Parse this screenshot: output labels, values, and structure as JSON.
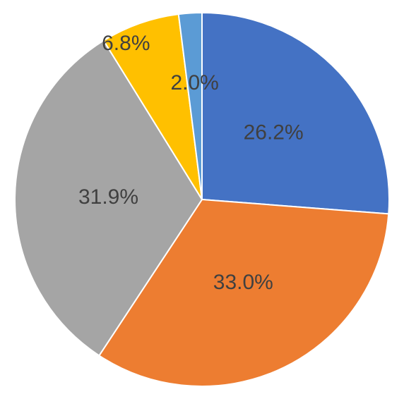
{
  "chart_data": {
    "type": "pie",
    "values": [
      26.2,
      33.0,
      31.9,
      6.8,
      2.0
    ],
    "value_labels": [
      "26.2%",
      "33.0%",
      "31.9%",
      "6.8%",
      "2.0%"
    ],
    "colors": [
      "#4472c4",
      "#ed7d31",
      "#a5a5a5",
      "#ffc000",
      "#5b9bd5"
    ]
  }
}
